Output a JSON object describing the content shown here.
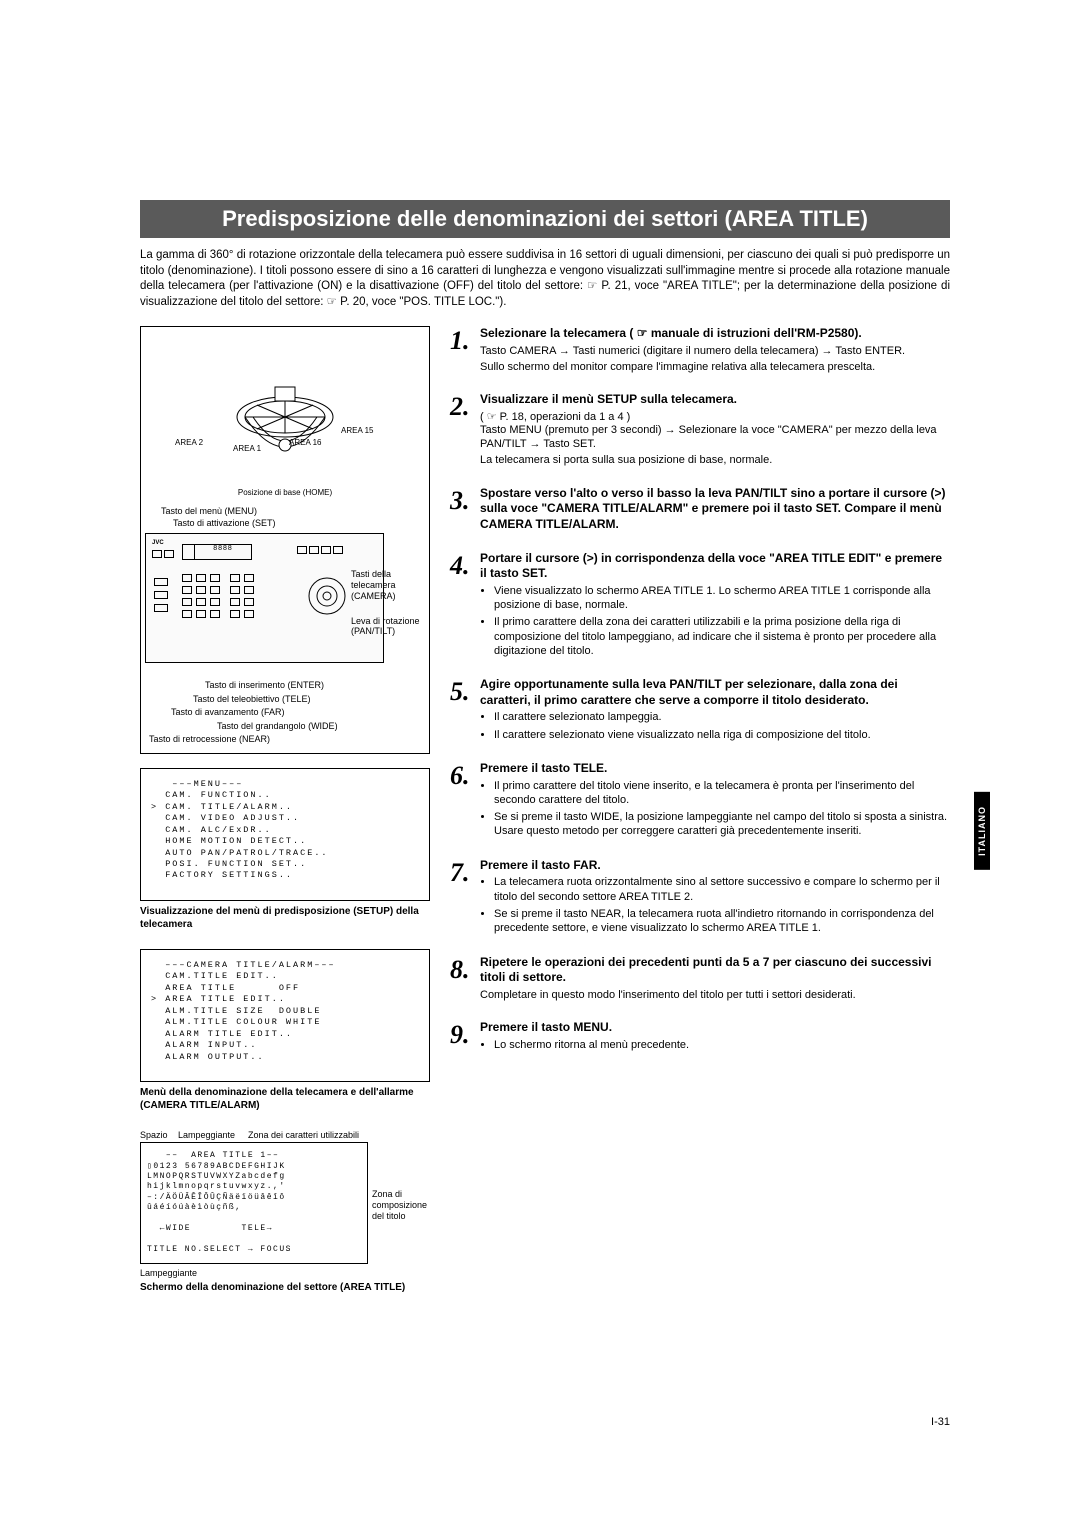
{
  "banner": "Predisposizione delle denominazioni dei settori (AREA TITLE)",
  "intro": "La gamma di 360° di rotazione orizzontale della telecamera può essere suddivisa in 16 settori di uguali dimensioni, per ciascuno dei quali si può predisporre un titolo (denominazione). I titoli possono essere di sino a 16 caratteri di lunghezza e vengono visualizzati sull'immagine mentre si procede alla rotazione manuale della telecamera (per l'attivazione (ON) e la disattivazione (OFF) del titolo del settore: ☞ P. 21, voce \"AREA TITLE\"; per la determinazione della posizione di visualizzazione del titolo del settore: ☞ P. 20, voce \"POS. TITLE LOC.\").",
  "dome": {
    "slice_labels": [
      "AREA 2",
      "AREA 1",
      "AREA 16",
      "AREA 15"
    ],
    "home_label": "Posizione\ndi base\n(HOME)"
  },
  "remote_labels": {
    "menu": "Tasto del menù (MENU)",
    "set": "Tasto di attivazione (SET)",
    "camera": "Tasti della telecamera (CAMERA)",
    "pantilt": "Leva di rotazione (PAN/TILT)",
    "enter": "Tasto di inserimento (ENTER)",
    "tele": "Tasto del teleobiettivo (TELE)",
    "far": "Tasto di avanzamento (FAR)",
    "wide": "Tasto del grandangolo (WIDE)",
    "near": "Tasto di retrocessione (NEAR)"
  },
  "screen1": {
    "lines": "   –––MENU–––\n  CAM. FUNCTION..\n> CAM. TITLE/ALARM..\n  CAM. VIDEO ADJUST..\n  CAM. ALC/ExDR..\n  HOME MOTION DETECT..\n  AUTO PAN/PATROL/TRACE..\n  POSI. FUNCTION SET..\n  FACTORY SETTINGS..",
    "caption": "Visualizzazione del menù di predisposizione (SETUP) della telecamera"
  },
  "screen2": {
    "lines": "  –––CAMERA TITLE/ALARM–––\n  CAM.TITLE EDIT..\n  AREA TITLE      OFF\n> AREA TITLE EDIT..\n  ALM.TITLE SIZE  DOUBLE\n  ALM.TITLE COLOUR WHITE\n  ALARM TITLE EDIT..\n  ALARM INPUT..\n  ALARM OUTPUT..",
    "caption": "Menù della denominazione della telecamera e dell'allarme (CAMERA TITLE/ALARM)"
  },
  "screen3": {
    "top_anno": {
      "a": "Spazio",
      "b": "Lampeggiante",
      "c": "Zona dei caratteri utilizzabili"
    },
    "lines": "   ––  AREA TITLE 1––\n▯0123 56789ABCDEFGHIJK\nLMNOPQRSTUVWXYZabcdefg\nhijklmnopqrstuvwxyz.,'\n–:/ÄÖÜÂÊÎÔÛÇÑäëïöüâêîô\nûáéíóúàèìòùçñß,\n\n  ←WIDE        TELE→\n\nTITLE NO.SELECT → FOCUS",
    "side_anno": "Zona di composizione del titolo",
    "bottom_anno": "Lampeggiante",
    "caption": "Schermo della denominazione del settore (AREA TITLE)"
  },
  "steps": [
    {
      "n": "1",
      "title": "Selezionare la telecamera ( ☞ manuale di istruzioni dell'RM-P2580).",
      "subs": [
        "Tasto CAMERA → Tasti numerici (digitare il numero della telecamera) → Tasto ENTER.",
        "Sullo schermo del monitor compare l'immagine relativa alla telecamera prescelta."
      ]
    },
    {
      "n": "2",
      "title": "Visualizzare il menù SETUP sulla telecamera.",
      "ref": "( ☞ P. 18,  operazioni da 1 a 4 )",
      "subs": [
        "Tasto MENU (premuto per 3 secondi) → Selezionare la voce \"CAMERA\" per mezzo della leva PAN/TILT → Tasto SET.",
        "La telecamera si porta sulla sua posizione di base, normale."
      ]
    },
    {
      "n": "3",
      "title": "Spostare verso l'alto o verso il basso la leva PAN/TILT sino a portare il cursore (>) sulla voce \"CAMERA TITLE/ALARM\" e premere poi il tasto SET. Compare il menù CAMERA TITLE/ALARM."
    },
    {
      "n": "4",
      "title": "Portare il cursore (>) in corrispondenza della voce \"AREA TITLE EDIT\" e premere il tasto SET.",
      "bullets": [
        "Viene visualizzato lo schermo AREA TITLE 1. Lo schermo AREA TITLE 1 corrisponde alla posizione di base, normale.",
        "Il primo carattere della zona dei caratteri utilizzabili e la prima posizione della riga di composizione del titolo lampeggiano, ad indicare che il sistema è pronto per procedere alla digitazione del titolo."
      ]
    },
    {
      "n": "5",
      "title": "Agire opportunamente sulla leva PAN/TILT per selezionare, dalla zona dei caratteri, il primo carattere che serve a comporre il titolo desiderato.",
      "bullets": [
        "Il carattere selezionato lampeggia.",
        "Il carattere selezionato viene visualizzato nella riga di composizione del titolo."
      ]
    },
    {
      "n": "6",
      "title": "Premere il tasto TELE.",
      "bullets": [
        "Il primo carattere del titolo viene inserito, e la telecamera è pronta per l'inserimento del secondo carattere del titolo.",
        "Se si preme il tasto WIDE, la posizione lampeggiante nel campo del titolo si sposta a sinistra. Usare questo metodo per correggere caratteri già precedentemente inseriti."
      ]
    },
    {
      "n": "7",
      "title": "Premere il tasto FAR.",
      "bullets": [
        "La telecamera ruota orizzontalmente sino al settore successivo e compare lo schermo per il titolo del secondo settore AREA TITLE 2.",
        "Se si preme il tasto NEAR, la telecamera ruota all'indietro ritornando in corrispondenza del precedente settore, e viene visualizzato lo schermo AREA TITLE 1."
      ]
    },
    {
      "n": "8",
      "title": "Ripetere le operazioni dei precedenti punti da 5 a 7 per ciascuno dei successivi titoli di settore.",
      "subs": [
        "Completare in questo modo l'inserimento del titolo per tutti i settori desiderati."
      ]
    },
    {
      "n": "9",
      "title": "Premere il tasto MENU.",
      "bullets": [
        "Lo schermo ritorna al menù precedente."
      ]
    }
  ],
  "side_tab": "ITALIANO",
  "page_number": "I-31"
}
